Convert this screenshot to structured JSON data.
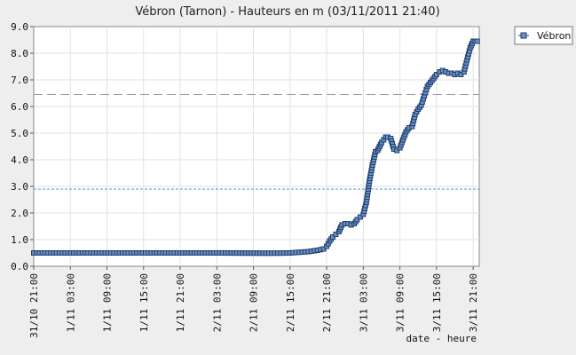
{
  "chart_data": {
    "type": "line",
    "title": "Vébron (Tarnon) - Hauteurs en m (03/11/2011 21:40)",
    "xlabel": "date - heure",
    "ylabel": "",
    "ylim": [
      0,
      9
    ],
    "yticks": [
      "0.0",
      "1.0",
      "2.0",
      "3.0",
      "4.0",
      "5.0",
      "6.0",
      "7.0",
      "8.0",
      "9.0"
    ],
    "xlim": [
      "31/10 21:00",
      "3/11 22:00"
    ],
    "xticks": [
      "31/10 21:00",
      "1/11 03:00",
      "1/11 09:00",
      "1/11 15:00",
      "1/11 21:00",
      "2/11 03:00",
      "2/11 09:00",
      "2/11 15:00",
      "2/11 21:00",
      "3/11 03:00",
      "3/11 09:00",
      "3/11 15:00",
      "3/11 21:00"
    ],
    "grid": true,
    "legend_position": "top-right",
    "thresholds": [
      {
        "value": 6.45,
        "color": "#999999",
        "style": "dashed"
      },
      {
        "value": 2.9,
        "color": "#4a9fc0",
        "style": "dotted"
      }
    ],
    "series": [
      {
        "name": "Vébron",
        "color": "#1f3f6f",
        "marker_fill": "#6a8fc0",
        "x": [
          "31/10 21:00",
          "1/11 12:00",
          "1/11 21:00",
          "2/11 03:00",
          "2/11 12:00",
          "2/11 15:00",
          "2/11 18:00",
          "2/11 19:30",
          "2/11 20:30",
          "2/11 21:00",
          "2/11 21:30",
          "2/11 22:00",
          "2/11 22:30",
          "2/11 23:00",
          "2/11 23:30",
          "3/11 00:00",
          "3/11 00:30",
          "3/11 01:00",
          "3/11 01:30",
          "3/11 02:00",
          "3/11 02:30",
          "3/11 03:00",
          "3/11 03:30",
          "3/11 04:00",
          "3/11 04:30",
          "3/11 05:00",
          "3/11 05:20",
          "3/11 05:40",
          "3/11 06:00",
          "3/11 06:20",
          "3/11 06:40",
          "3/11 07:00",
          "3/11 07:30",
          "3/11 08:00",
          "3/11 08:30",
          "3/11 09:00",
          "3/11 09:30",
          "3/11 10:00",
          "3/11 10:30",
          "3/11 11:00",
          "3/11 11:30",
          "3/11 12:00",
          "3/11 12:30",
          "3/11 13:00",
          "3/11 13:30",
          "3/11 14:00",
          "3/11 14:30",
          "3/11 15:00",
          "3/11 15:30",
          "3/11 16:00",
          "3/11 16:30",
          "3/11 17:00",
          "3/11 17:30",
          "3/11 18:00",
          "3/11 18:30",
          "3/11 19:00",
          "3/11 19:30",
          "3/11 20:00",
          "3/11 20:30",
          "3/11 21:00",
          "3/11 21:20",
          "3/11 21:40"
        ],
        "y": [
          0.5,
          0.5,
          0.5,
          0.5,
          0.49,
          0.5,
          0.55,
          0.6,
          0.65,
          0.75,
          0.95,
          1.1,
          1.2,
          1.3,
          1.55,
          1.6,
          1.6,
          1.55,
          1.6,
          1.75,
          1.85,
          1.95,
          2.4,
          3.2,
          3.8,
          4.3,
          4.35,
          4.5,
          4.65,
          4.75,
          4.85,
          4.85,
          4.8,
          4.4,
          4.35,
          4.45,
          4.75,
          5.05,
          5.2,
          5.25,
          5.7,
          5.9,
          6.05,
          6.4,
          6.75,
          6.9,
          7.05,
          7.2,
          7.3,
          7.35,
          7.3,
          7.25,
          7.25,
          7.2,
          7.25,
          7.2,
          7.3,
          7.75,
          8.2,
          8.45,
          8.45,
          8.45
        ]
      }
    ]
  }
}
